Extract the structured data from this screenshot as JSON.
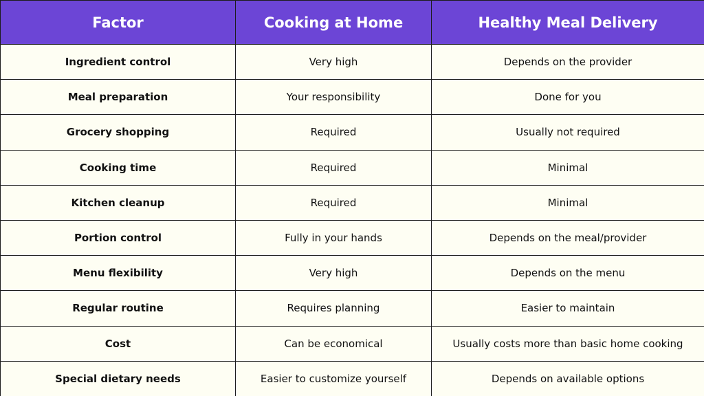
{
  "table": {
    "headers": [
      "Factor",
      "Cooking at Home",
      "Healthy Meal Delivery"
    ],
    "rows": [
      [
        "Ingredient control",
        "Very high",
        "Depends on the provider"
      ],
      [
        "Meal preparation",
        "Your responsibility",
        "Done for you"
      ],
      [
        "Grocery shopping",
        "Required",
        "Usually not required"
      ],
      [
        "Cooking time",
        "Required",
        "Minimal"
      ],
      [
        "Kitchen cleanup",
        "Required",
        "Minimal"
      ],
      [
        "Portion control",
        "Fully in your hands",
        "Depends on the meal/provider"
      ],
      [
        "Menu flexibility",
        "Very high",
        "Depends on the menu"
      ],
      [
        "Regular routine",
        "Requires planning",
        "Easier to maintain"
      ],
      [
        "Cost",
        "Can be economical",
        "Usually costs more than basic home cooking"
      ],
      [
        "Special dietary needs",
        "Easier to customize yourself",
        "Depends on available options"
      ]
    ],
    "colors": {
      "header_bg": "#6c45d6",
      "header_text": "#ffffff",
      "cell_bg": "#fefef3",
      "border": "#1c1c1c"
    }
  }
}
